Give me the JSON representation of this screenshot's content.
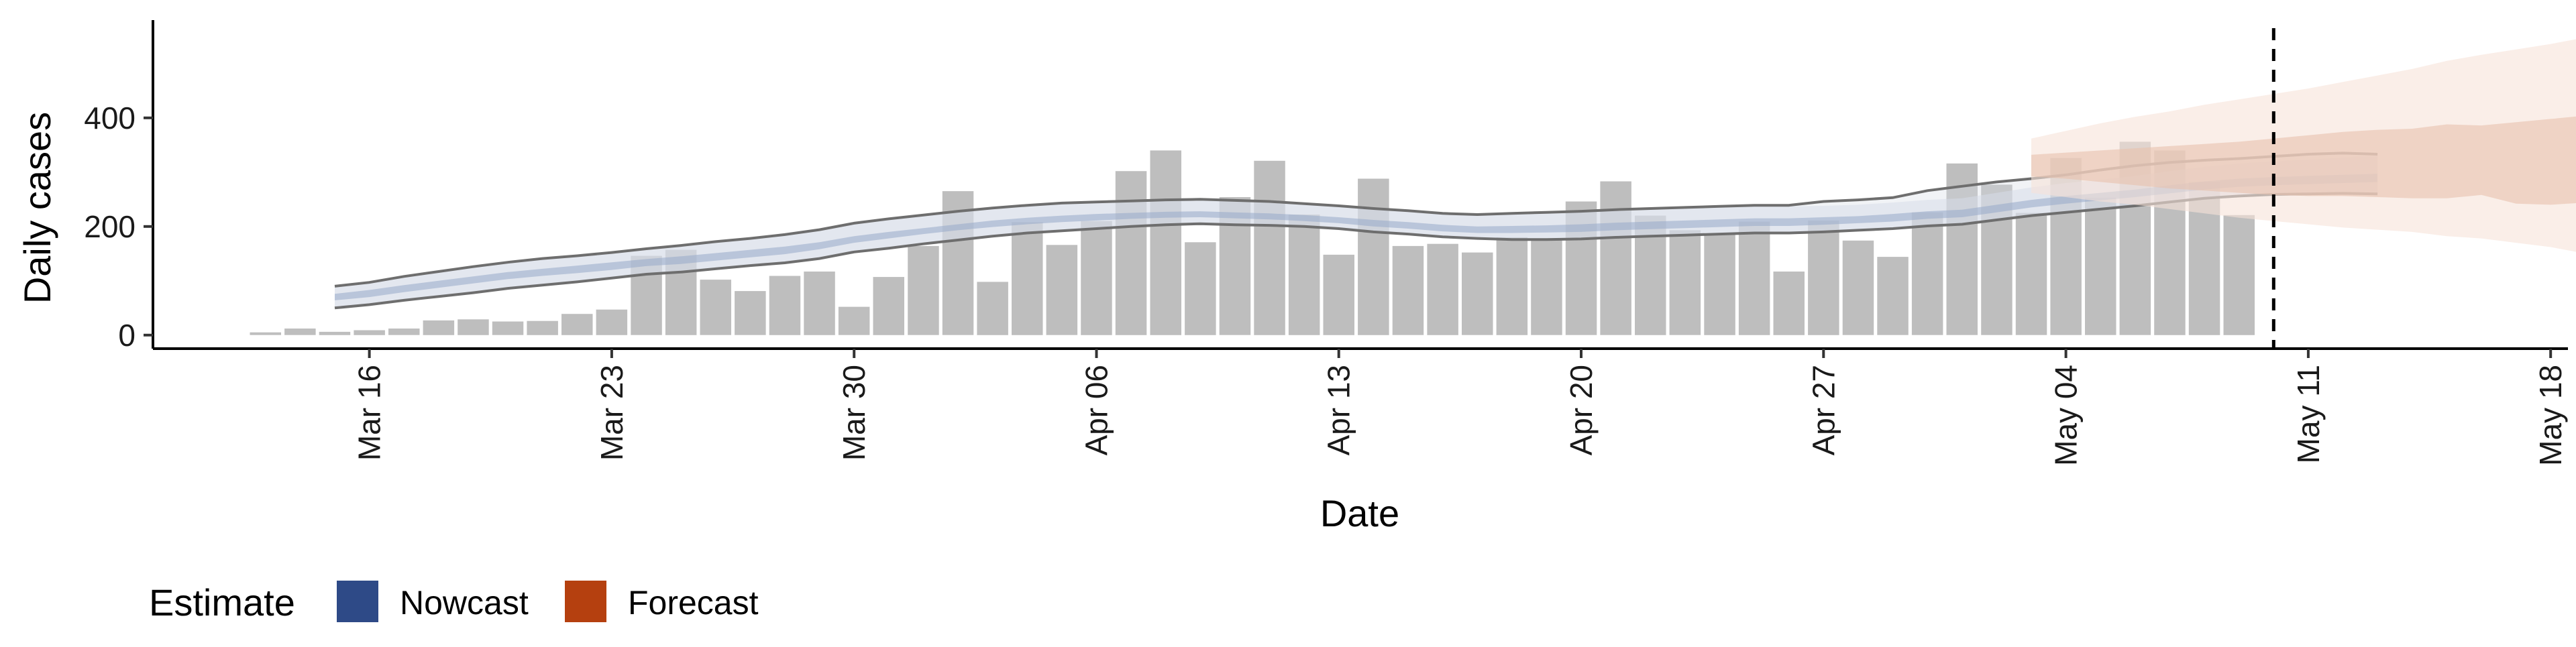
{
  "chart_data": {
    "type": "bar",
    "xlabel": "Date",
    "ylabel": "Daily cases",
    "ylim": [
      -25,
      580
    ],
    "y_ticks": [
      0,
      200,
      400
    ],
    "x_ticks": [
      "2020-03-16",
      "2020-03-23",
      "2020-03-30",
      "2020-04-06",
      "2020-04-13",
      "2020-04-20",
      "2020-04-27",
      "2020-05-04",
      "2020-05-11",
      "2020-05-18"
    ],
    "x_tick_labels": [
      "Mar 16",
      "Mar 23",
      "Mar 30",
      "Apr 06",
      "Apr 13",
      "Apr 20",
      "Apr 27",
      "May 04",
      "May 11",
      "May 18"
    ],
    "xlim": [
      "2020-03-09T18:00",
      "2020-05-18T12:00"
    ],
    "vline_date": "2020-05-10",
    "grid": false,
    "legend": {
      "title": "Estimate",
      "position": "bottom-left",
      "items": [
        {
          "label": "Nowcast",
          "color": "#2e4a87"
        },
        {
          "label": "Forecast",
          "color": "#b5400f"
        }
      ]
    },
    "bars": {
      "start_date": "2020-03-13",
      "color": "#bebebe",
      "values": [
        5,
        12,
        6,
        9,
        12,
        27,
        29,
        25,
        26,
        39,
        47,
        146,
        157,
        102,
        81,
        109,
        117,
        52,
        107,
        164,
        265,
        98,
        208,
        166,
        210,
        302,
        340,
        171,
        254,
        321,
        222,
        148,
        288,
        164,
        168,
        152,
        180,
        175,
        246,
        283,
        220,
        193,
        187,
        209,
        117,
        211,
        174,
        144,
        226,
        316,
        277,
        225,
        326,
        253,
        356,
        340,
        282,
        221
      ]
    },
    "nowcast": {
      "start_date": "2020-03-15",
      "colors": {
        "inner_band": "#98a9c9",
        "outer_band": "#d7dcea",
        "ci_line": "#6e6e6e",
        "background_band": "#d8dce6"
      },
      "outer_upper": [
        88,
        95,
        106,
        115,
        124,
        132,
        139,
        144,
        150,
        157,
        163,
        170,
        176,
        183,
        192,
        204,
        212,
        219,
        226,
        232,
        237,
        241,
        243,
        245,
        247,
        248,
        246,
        244,
        240,
        236,
        231,
        227,
        222,
        220,
        222,
        224,
        226,
        229,
        231,
        233,
        235,
        237,
        237,
        238,
        240,
        244,
        249,
        252,
        262,
        272,
        280,
        286,
        293,
        302,
        310,
        316,
        320,
        323,
        327,
        331
      ],
      "outer_lower": [
        52,
        58,
        66,
        73,
        80,
        88,
        94,
        100,
        107,
        114,
        118,
        124,
        130,
        135,
        143,
        155,
        162,
        170,
        177,
        184,
        190,
        194,
        198,
        202,
        205,
        207,
        205,
        204,
        202,
        198,
        192,
        188,
        183,
        180,
        178,
        178,
        179,
        182,
        184,
        186,
        188,
        190,
        190,
        192,
        195,
        198,
        203,
        206,
        214,
        222,
        228,
        234,
        240,
        247,
        254,
        258,
        261,
        262,
        262,
        262
      ],
      "inner_upper": [
        76,
        83,
        92,
        100,
        108,
        116,
        122,
        128,
        134,
        140,
        145,
        151,
        157,
        163,
        171,
        182,
        190,
        197,
        204,
        211,
        216,
        220,
        223,
        225,
        227,
        228,
        226,
        224,
        221,
        217,
        212,
        208,
        203,
        200,
        201,
        202,
        204,
        207,
        209,
        211,
        213,
        215,
        215,
        217,
        219,
        223,
        228,
        231,
        240,
        249,
        256,
        262,
        268,
        276,
        283,
        288,
        291,
        293,
        295,
        297
      ],
      "inner_lower": [
        64,
        70,
        79,
        87,
        95,
        103,
        109,
        114,
        120,
        127,
        131,
        137,
        143,
        149,
        158,
        170,
        178,
        186,
        193,
        199,
        204,
        208,
        211,
        214,
        216,
        217,
        215,
        213,
        210,
        206,
        200,
        196,
        191,
        188,
        188,
        189,
        190,
        193,
        195,
        197,
        199,
        201,
        201,
        203,
        206,
        209,
        214,
        217,
        226,
        235,
        242,
        248,
        254,
        261,
        268,
        273,
        276,
        278,
        280,
        282
      ],
      "ci_upper": [
        90,
        97,
        108,
        117,
        126,
        134,
        141,
        146,
        152,
        159,
        165,
        172,
        178,
        185,
        194,
        206,
        214,
        221,
        228,
        234,
        239,
        243,
        245,
        247,
        249,
        250,
        248,
        246,
        242,
        238,
        233,
        229,
        224,
        222,
        224,
        226,
        228,
        231,
        233,
        235,
        237,
        239,
        239,
        246,
        249,
        253,
        266,
        274,
        282,
        288,
        295,
        304,
        312,
        318,
        322,
        325,
        329,
        333,
        335,
        333
      ],
      "ci_lower": [
        50,
        56,
        64,
        71,
        78,
        86,
        92,
        98,
        105,
        112,
        116,
        122,
        128,
        133,
        141,
        153,
        160,
        168,
        175,
        182,
        188,
        192,
        196,
        200,
        203,
        205,
        203,
        202,
        200,
        196,
        190,
        186,
        181,
        178,
        176,
        176,
        177,
        180,
        182,
        184,
        186,
        188,
        188,
        190,
        193,
        196,
        201,
        204,
        212,
        220,
        226,
        232,
        238,
        245,
        252,
        256,
        259,
        260,
        261,
        260
      ]
    },
    "forecast": {
      "start_date": "2020-05-03",
      "colors": {
        "inner_band": "#e8c2ad",
        "outer_band": "#f6e2d9"
      },
      "outer_upper": [
        362,
        376,
        390,
        402,
        412,
        424,
        434,
        444,
        454,
        466,
        478,
        490,
        505,
        516,
        526,
        536,
        548,
        552
      ],
      "outer_lower": [
        262,
        254,
        246,
        240,
        232,
        224,
        216,
        210,
        204,
        198,
        194,
        190,
        182,
        178,
        170,
        162,
        150,
        132
      ],
      "inner_upper": [
        332,
        336,
        340,
        344,
        348,
        352,
        356,
        362,
        368,
        374,
        378,
        380,
        388,
        386,
        392,
        398,
        404,
        406
      ],
      "inner_lower": [
        292,
        288,
        282,
        276,
        270,
        266,
        262,
        258,
        256,
        256,
        254,
        252,
        252,
        258,
        242,
        240,
        244,
        246
      ]
    }
  }
}
